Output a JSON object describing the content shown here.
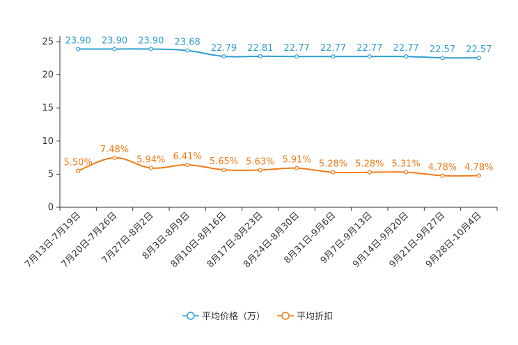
{
  "chart_data": {
    "type": "line",
    "categories": [
      "7月13日-7月19日",
      "7月20日-7月26日",
      "7月27日-8月2日",
      "8月3日-8月9日",
      "8月10日-8月16日",
      "8月17日-8月23日",
      "8月24日-8月30日",
      "8月31日-9月6日",
      "9月7日-9月13日",
      "9月14日-9月20日",
      "9月21日-9月27日",
      "9月28日-10月4日"
    ],
    "series": [
      {
        "name": "平均价格（万）",
        "color": "#2e9fd1",
        "values": [
          23.9,
          23.9,
          23.9,
          23.68,
          22.79,
          22.81,
          22.77,
          22.77,
          22.77,
          22.77,
          22.57,
          22.57
        ],
        "labels": [
          "23.90",
          "23.90",
          "23.90",
          "23.68",
          "22.79",
          "22.81",
          "22.77",
          "22.77",
          "22.77",
          "22.77",
          "22.57",
          "22.57"
        ]
      },
      {
        "name": "平均折扣",
        "color": "#f07a16",
        "values": [
          5.5,
          7.48,
          5.94,
          6.41,
          5.65,
          5.63,
          5.91,
          5.28,
          5.28,
          5.31,
          4.78,
          4.78
        ],
        "labels": [
          "5.50%",
          "7.48%",
          "5.94%",
          "6.41%",
          "5.65%",
          "5.63%",
          "5.91%",
          "5.28%",
          "5.28%",
          "5.31%",
          "4.78%",
          "4.78%"
        ]
      }
    ],
    "yticks": [
      "0",
      "5",
      "10",
      "15",
      "20",
      "25"
    ],
    "ylim": [
      0,
      25
    ],
    "grid": false,
    "legend_position": "bottom-center"
  }
}
